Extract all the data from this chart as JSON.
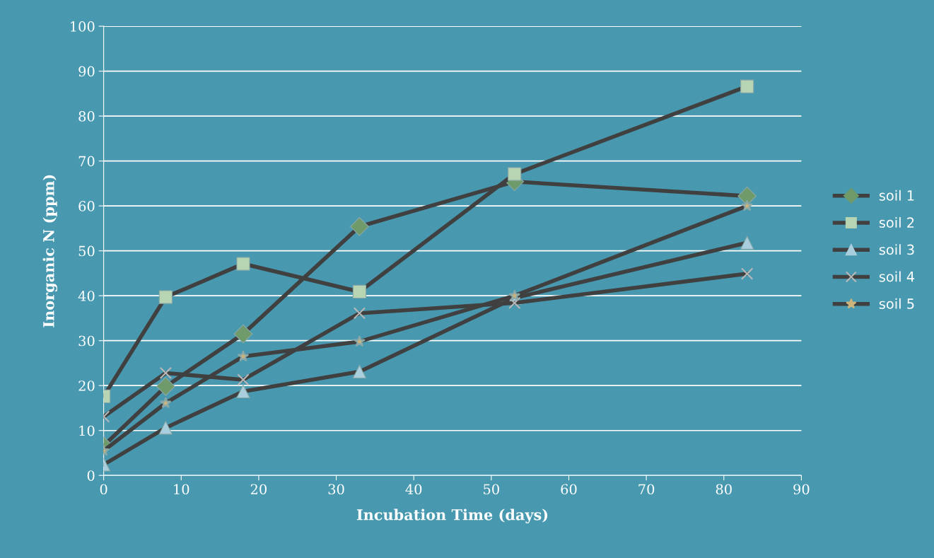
{
  "chart_data": {
    "type": "line",
    "xlabel": "Incubation Time (days)",
    "ylabel": "Inorganic N (ppm)",
    "x": [
      0,
      8,
      18,
      33,
      53,
      83
    ],
    "series": [
      {
        "name": "soil 1",
        "color": "#6f9a6a",
        "marker": "diamond",
        "values": [
          6.6,
          19.8,
          31.5,
          55.4,
          65.4,
          62.2
        ]
      },
      {
        "name": "soil 2",
        "color": "#b7d5b2",
        "marker": "square",
        "values": [
          17.6,
          39.7,
          47.1,
          40.9,
          67.1,
          86.6
        ]
      },
      {
        "name": "soil 3",
        "color": "#a9cfdf",
        "marker": "triangle",
        "values": [
          2.4,
          10.6,
          18.7,
          23.1,
          39.5,
          51.8
        ]
      },
      {
        "name": "soil 4",
        "color": "#b8b8b8",
        "marker": "cross",
        "values": [
          13.1,
          22.8,
          21.3,
          36.1,
          38.4,
          44.9
        ]
      },
      {
        "name": "soil 5",
        "color": "#cdb47c",
        "marker": "star",
        "values": [
          5.5,
          16.1,
          26.5,
          29.8,
          40.0,
          60.0
        ]
      }
    ],
    "xlim": [
      0,
      90
    ],
    "xticks": [
      0,
      10,
      20,
      30,
      40,
      50,
      60,
      70,
      80,
      90
    ],
    "ylim": [
      0,
      100
    ],
    "yticks": [
      0,
      10,
      20,
      30,
      40,
      50,
      60,
      70,
      80,
      90,
      100
    ],
    "grid": "y",
    "legend": "right"
  }
}
